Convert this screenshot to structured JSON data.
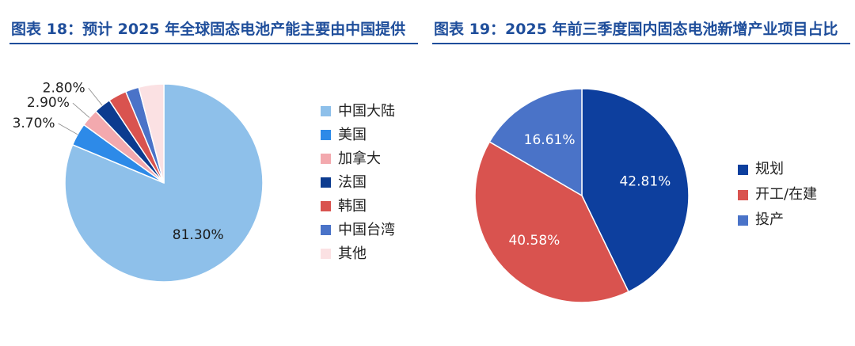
{
  "figure_left": {
    "title": "图表 18：预计 2025 年全球固态电池产能主要由中国提供"
  },
  "figure_right": {
    "title": "图表 19：2025 年前三季度国内固态电池新增产业项目占比"
  },
  "chart_data": [
    {
      "type": "pie",
      "title": "图表 18：预计 2025 年全球固态电池产能主要由中国提供",
      "start": "top",
      "direction": "clockwise",
      "slices": [
        {
          "label": "中国大陆",
          "value": 81.3,
          "display": "81.30%",
          "color": "#8ec0ea"
        },
        {
          "label": "美国",
          "value": 3.7,
          "display": "3.70%",
          "color": "#2d8ae8"
        },
        {
          "label": "加拿大",
          "value": 2.9,
          "display": "2.90%",
          "color": "#f3a9ae"
        },
        {
          "label": "法国",
          "value": 2.8,
          "display": "2.80%",
          "color": "#0c3b8f"
        },
        {
          "label": "韩国",
          "value": 3.0,
          "display": "",
          "color": "#d9534f"
        },
        {
          "label": "中国台湾",
          "value": 2.2,
          "display": "",
          "color": "#4a73c8"
        },
        {
          "label": "其他",
          "value": 4.1,
          "display": "",
          "color": "#fbe1e3"
        }
      ],
      "legend_position": "right"
    },
    {
      "type": "pie",
      "title": "图表 19：2025 年前三季度国内固态电池新增产业项目占比",
      "start": "top",
      "direction": "clockwise",
      "slices": [
        {
          "label": "规划",
          "value": 42.81,
          "display": "42.81%",
          "color": "#0d3f9e"
        },
        {
          "label": "开工/在建",
          "value": 40.58,
          "display": "40.58%",
          "color": "#d9534f"
        },
        {
          "label": "投产",
          "value": 16.61,
          "display": "16.61%",
          "color": "#4a73c8"
        }
      ],
      "legend_position": "right"
    }
  ]
}
